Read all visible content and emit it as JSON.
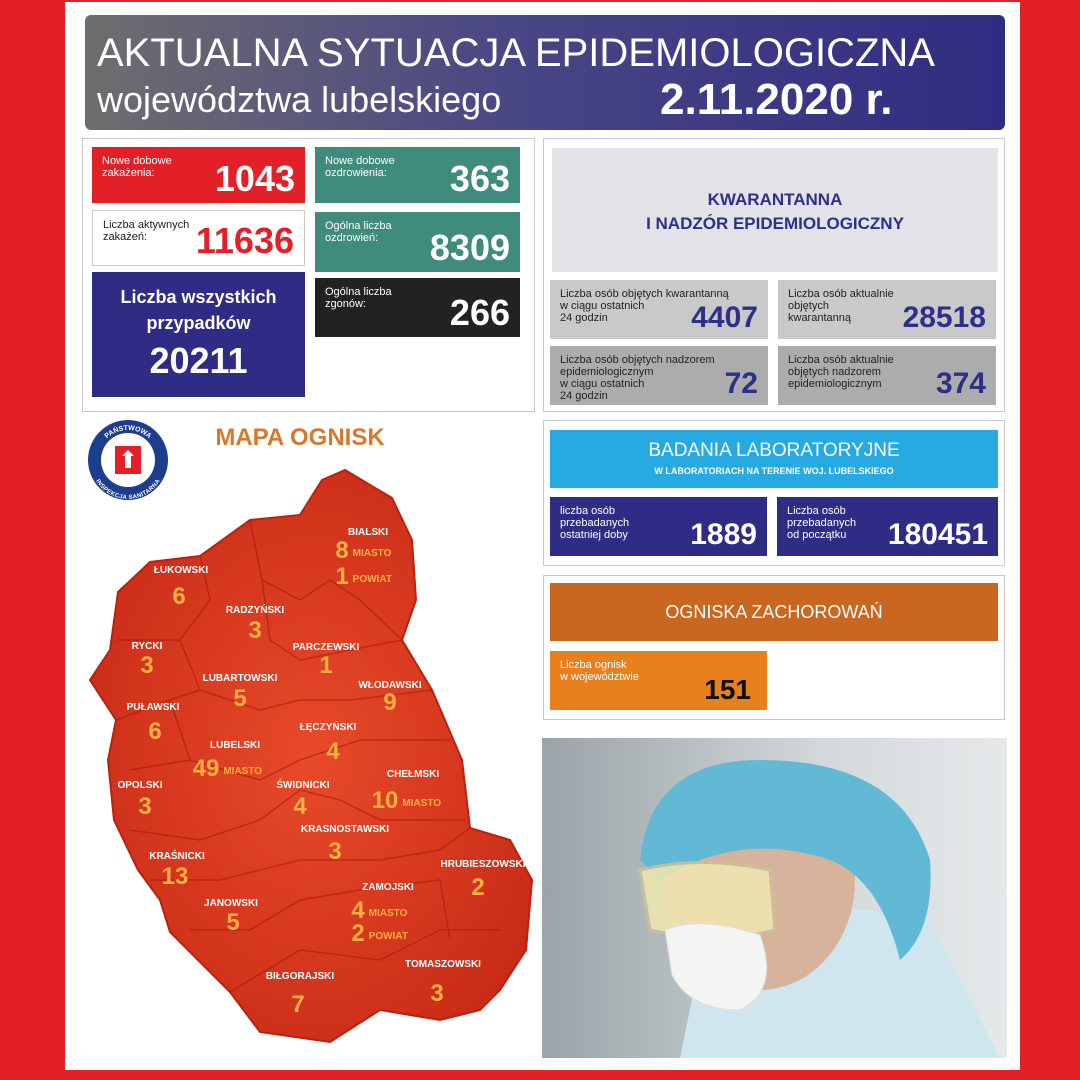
{
  "header": {
    "title": "AKTUALNA SYTUACJA EPIDEMIOLOGICZNA",
    "subtitle": "województwa lubelskiego",
    "date": "2.11.2020 r."
  },
  "stats": [
    {
      "label": "Nowe dobowe\nzakażenia:",
      "value": 1043
    },
    {
      "label": "Liczba aktywnych\nzakażeń:",
      "value": 11636
    },
    {
      "label": "Liczba wszystkich\nprzypadków",
      "value": 20211
    },
    {
      "label": "Nowe dobowe\nozdrowienia:",
      "value": 363
    },
    {
      "label": "Ogólna liczba\nozdrowień:",
      "value": 8309
    },
    {
      "label": "Ogólna liczba\nzgonów:",
      "value": 266
    }
  ],
  "quarantine": {
    "title": "KWARANTANNA\nI NADZÓR EPIDEMIOLOGICZNY",
    "items": [
      {
        "label": "Liczba osób objętych kwarantanną\nw ciągu ostatnich\n24 godzin",
        "value": 4407
      },
      {
        "label": "Liczba osób aktualnie\nobjętych\nkwarantanną",
        "value": 28518
      },
      {
        "label": "Liczba osób objętych nadzorem\nepidemiologicznym\nw ciągu ostatnich\n24 godzin",
        "value": 72
      },
      {
        "label": "Liczba osób aktualnie\nobjętych nadzorem\nepidemiologicznym",
        "value": 374
      }
    ]
  },
  "lab": {
    "title": "BADANIA LABORATORYJNE",
    "subtitle": "W LABORATORIACH NA TERENIE WOJ. LUBELSKIEGO",
    "items": [
      {
        "label": "liczba osób\nprzebadanych\nostatniej doby",
        "value": 1889
      },
      {
        "label": "Liczba osób\nprzebadanych\nod początku",
        "value": 180451
      }
    ]
  },
  "outbreaks": {
    "title": "OGNISKA ZACHOROWAŃ",
    "label": "Liczba ognisk\nw województwie",
    "value": 151
  },
  "logo": {
    "top": "PAŃSTWOWA",
    "bottom": "INSPEKCJA SANITARNA"
  },
  "map": {
    "title": "MAPA OGNISK",
    "districts": [
      {
        "name": "BIALSKI",
        "counts": [
          {
            "value": 8,
            "note": "MIASTO"
          },
          {
            "value": 1,
            "note": "POWIAT"
          }
        ]
      },
      {
        "name": "ŁUKOWSKI",
        "counts": [
          {
            "value": 6
          }
        ]
      },
      {
        "name": "RADZYŃSKI",
        "counts": [
          {
            "value": 3
          }
        ]
      },
      {
        "name": "PARCZEWSKI",
        "counts": [
          {
            "value": 1
          }
        ]
      },
      {
        "name": "RYCKI",
        "counts": [
          {
            "value": 3
          }
        ]
      },
      {
        "name": "LUBARTOWSKI",
        "counts": [
          {
            "value": 5
          }
        ]
      },
      {
        "name": "WŁODAWSKI",
        "counts": [
          {
            "value": 9
          }
        ]
      },
      {
        "name": "PUŁAWSKI",
        "counts": [
          {
            "value": 6
          }
        ]
      },
      {
        "name": "ŁĘCZYŃSKI",
        "counts": [
          {
            "value": 4
          }
        ]
      },
      {
        "name": "LUBELSKI",
        "counts": [
          {
            "value": 49,
            "note": "MIASTO"
          }
        ]
      },
      {
        "name": "CHEŁMSKI",
        "counts": [
          {
            "value": 10,
            "note": "MIASTO"
          }
        ]
      },
      {
        "name": "OPOLSKI",
        "counts": [
          {
            "value": 3
          }
        ]
      },
      {
        "name": "ŚWIDNICKI",
        "counts": [
          {
            "value": 4
          }
        ]
      },
      {
        "name": "KRASNOSTAWSKI",
        "counts": [
          {
            "value": 3
          }
        ]
      },
      {
        "name": "KRAŚNICKI",
        "counts": [
          {
            "value": 13
          }
        ]
      },
      {
        "name": "HRUBIESZOWSKI",
        "counts": [
          {
            "value": 2
          }
        ]
      },
      {
        "name": "ZAMOJSKI",
        "counts": [
          {
            "value": 4,
            "note": "MIASTO"
          },
          {
            "value": 2,
            "note": "POWIAT"
          }
        ]
      },
      {
        "name": "JANOWSKI",
        "counts": [
          {
            "value": 5
          }
        ]
      },
      {
        "name": "BIŁGORAJSKI",
        "counts": [
          {
            "value": 7
          }
        ]
      },
      {
        "name": "TOMASZOWSKI",
        "counts": [
          {
            "value": 3
          }
        ]
      }
    ]
  }
}
